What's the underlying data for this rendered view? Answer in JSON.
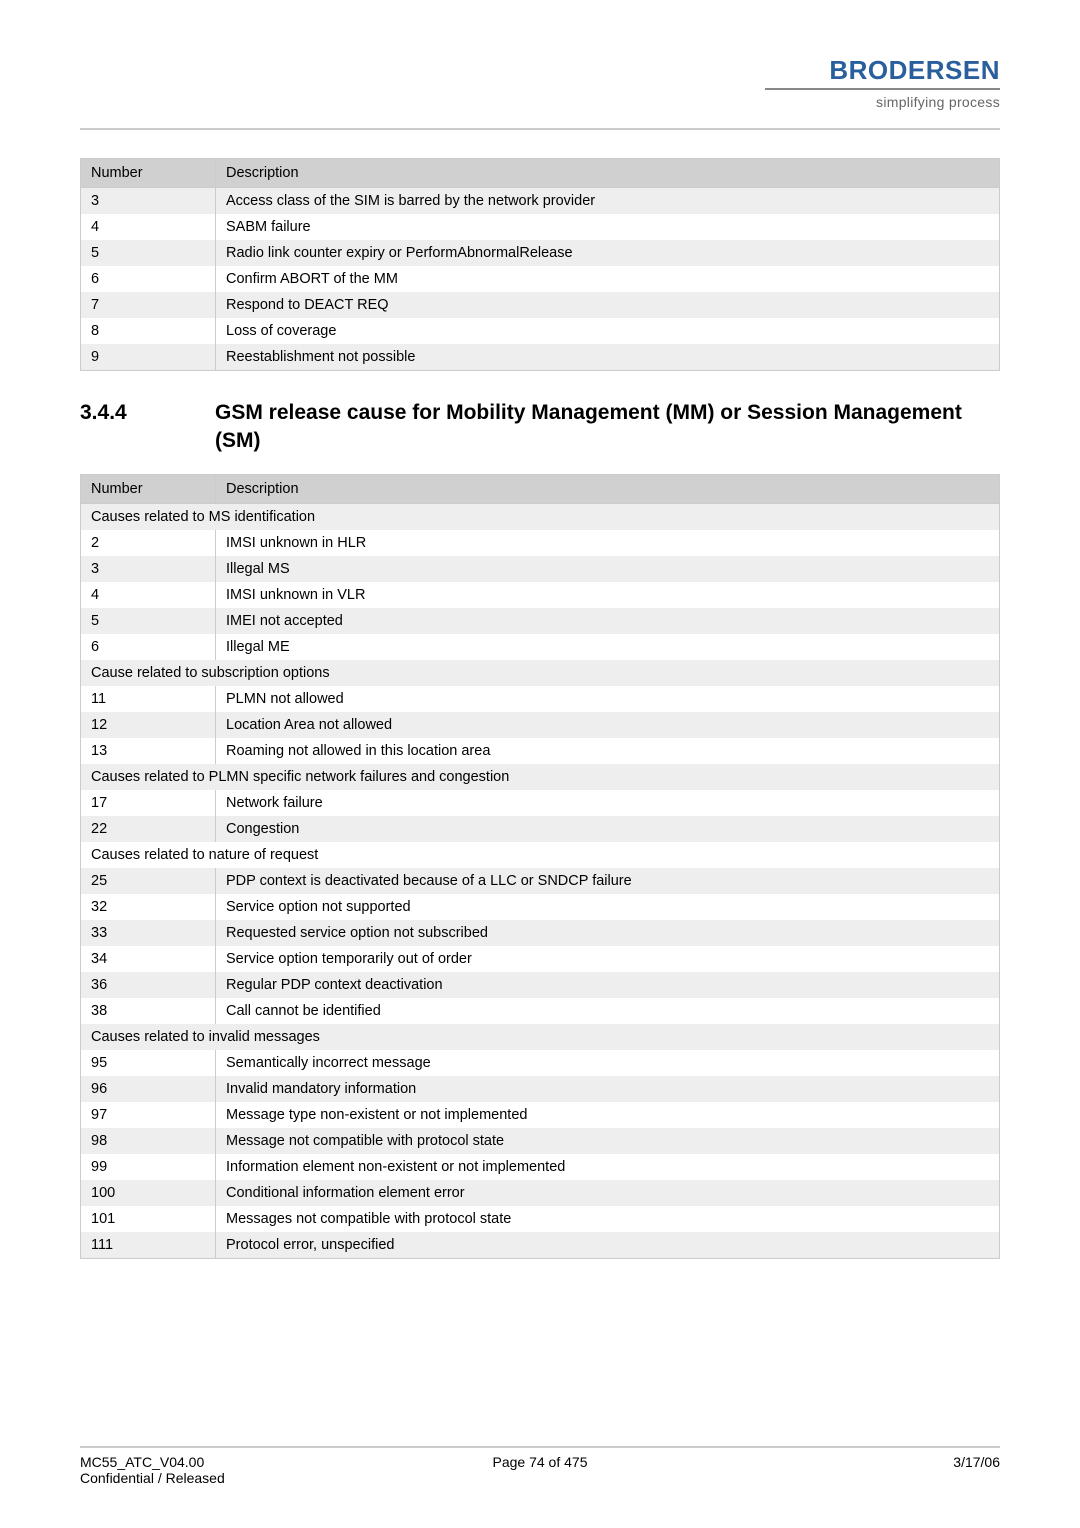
{
  "header": {
    "logo": "BRODERSEN",
    "tagline": "simplifying process"
  },
  "table1": {
    "columns": [
      "Number",
      "Description"
    ],
    "rows": [
      [
        "3",
        "Access class of the SIM is barred by the network provider"
      ],
      [
        "4",
        "SABM failure"
      ],
      [
        "5",
        "Radio link counter expiry or PerformAbnormalRelease"
      ],
      [
        "6",
        "Confirm ABORT of the MM"
      ],
      [
        "7",
        "Respond to DEACT REQ"
      ],
      [
        "8",
        "Loss of coverage"
      ],
      [
        "9",
        "Reestablishment not possible"
      ]
    ]
  },
  "section": {
    "number": "3.4.4",
    "title": "GSM release cause for Mobility Management (MM) or Session Management (SM)"
  },
  "table2": {
    "columns": [
      "Number",
      "Description"
    ],
    "groups": [
      {
        "subheading": "Causes related to MS identification",
        "rows": [
          [
            "2",
            "IMSI unknown in HLR"
          ],
          [
            "3",
            "Illegal MS"
          ],
          [
            "4",
            "IMSI unknown in VLR"
          ],
          [
            "5",
            "IMEI not accepted"
          ],
          [
            "6",
            "Illegal ME"
          ]
        ]
      },
      {
        "subheading": "Cause related to subscription options",
        "rows": [
          [
            "11",
            "PLMN not allowed"
          ],
          [
            "12",
            "Location Area not allowed"
          ],
          [
            "13",
            "Roaming not allowed in this location area"
          ]
        ]
      },
      {
        "subheading": "Causes related to PLMN specific network failures and congestion",
        "rows": [
          [
            "17",
            "Network failure"
          ],
          [
            "22",
            "Congestion"
          ]
        ]
      },
      {
        "subheading": "Causes related to nature of request",
        "rows": [
          [
            "25",
            "PDP context is deactivated because of a LLC or SNDCP failure"
          ],
          [
            "32",
            "Service option not supported"
          ],
          [
            "33",
            "Requested service option not subscribed"
          ],
          [
            "34",
            "Service option temporarily out of order"
          ],
          [
            "36",
            "Regular PDP context deactivation"
          ],
          [
            "38",
            "Call cannot be identified"
          ]
        ]
      },
      {
        "subheading": "Causes related to invalid messages",
        "rows": [
          [
            "95",
            "Semantically incorrect message"
          ],
          [
            "96",
            "Invalid mandatory information"
          ],
          [
            "97",
            "Message type non-existent or not implemented"
          ],
          [
            "98",
            "Message not compatible with protocol state"
          ],
          [
            "99",
            "Information element non-existent or not implemented"
          ],
          [
            "100",
            "Conditional information element error"
          ],
          [
            "101",
            "Messages not compatible with protocol state"
          ],
          [
            "111",
            "Protocol error, unspecified"
          ]
        ]
      }
    ]
  },
  "footer": {
    "doc": "MC55_ATC_V04.00",
    "status": "Confidential / Released",
    "page": "Page 74 of 475",
    "date": "3/17/06"
  }
}
